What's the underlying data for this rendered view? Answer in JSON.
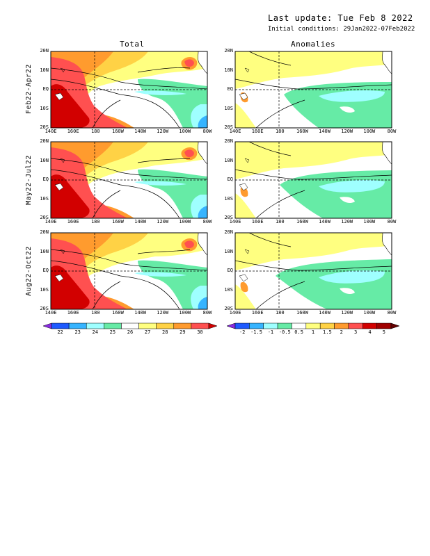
{
  "header": {
    "last_update": "Last update: Tue Feb 8 2022",
    "initial_conditions": "Initial conditions: 29Jan2022-07Feb2022"
  },
  "columns": [
    "Total",
    "Anomalies"
  ],
  "rows": [
    "Feb22-Apr22",
    "May22-Jul22",
    "Aug22-Oct22"
  ],
  "axes": {
    "lat_labels": [
      "20N",
      "10N",
      "EQ",
      "10S",
      "20S"
    ],
    "lon_labels": [
      "140E",
      "160E",
      "180",
      "160W",
      "140W",
      "120W",
      "100W",
      "80W"
    ]
  },
  "colorbars": {
    "total": {
      "labels": [
        "22",
        "23",
        "24",
        "25",
        "26",
        "27",
        "28",
        "29",
        "30"
      ],
      "colors": [
        "#8a2be2",
        "#1e5aff",
        "#36b4ff",
        "#9fffff",
        "#66eba6",
        "#ffffff",
        "#ffff80",
        "#ffd245",
        "#ff9b2e",
        "#ff5050",
        "#d20000"
      ]
    },
    "anomalies": {
      "labels": [
        "-2",
        "-1.5",
        "-1",
        "-0.5",
        "0.5",
        "1",
        "1.5",
        "2",
        "3",
        "4",
        "5"
      ],
      "colors": [
        "#8a2be2",
        "#1e5aff",
        "#36b4ff",
        "#9fffff",
        "#66eba6",
        "#ffffff",
        "#ffff80",
        "#ffd245",
        "#ff9b2e",
        "#ff5050",
        "#d20000",
        "#a00000",
        "#640000"
      ]
    }
  }
}
